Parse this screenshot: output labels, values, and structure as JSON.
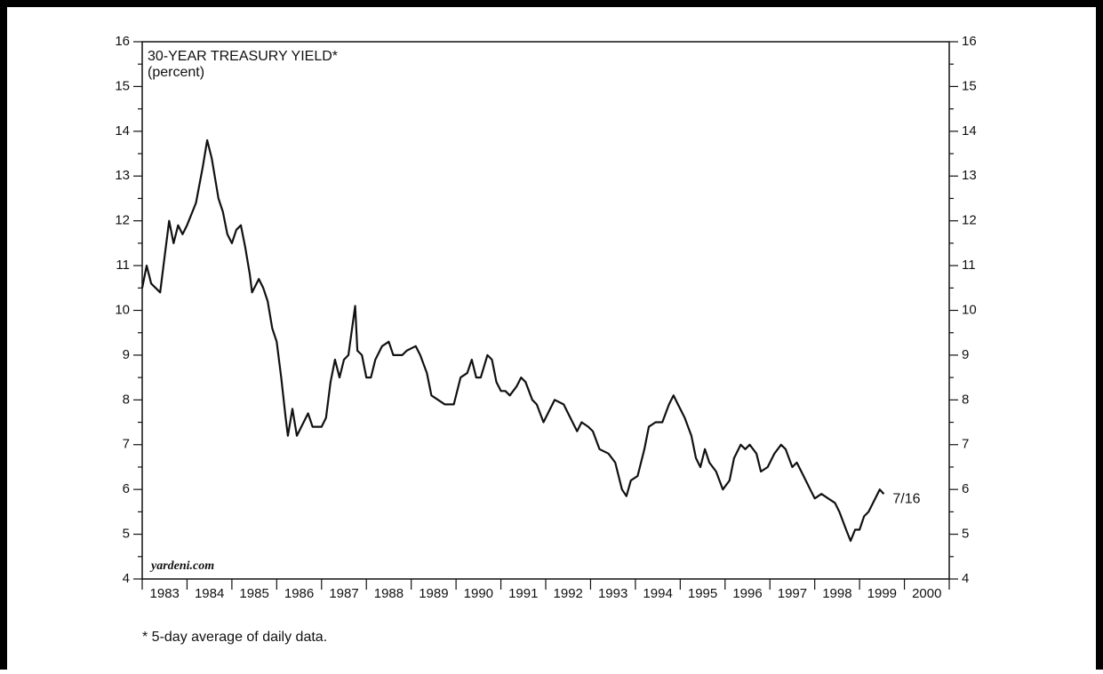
{
  "chart_data": {
    "type": "line",
    "title": "30-YEAR TREASURY YIELD*",
    "subtitle": "(percent)",
    "annotation": "7/16",
    "source": "yardeni.com",
    "footnote": "* 5-day average of daily data.",
    "categories": [
      "1983",
      "1984",
      "1985",
      "1986",
      "1987",
      "1988",
      "1989",
      "1990",
      "1991",
      "1992",
      "1993",
      "1994",
      "1995",
      "1996",
      "1997",
      "1998",
      "1999",
      "2000"
    ],
    "xlim": [
      1983,
      2001
    ],
    "xticks": [
      1983,
      1984,
      1985,
      1986,
      1987,
      1988,
      1989,
      1990,
      1991,
      1992,
      1993,
      1994,
      1995,
      1996,
      1997,
      1998,
      1999,
      2000,
      2001
    ],
    "ylim": [
      4,
      16
    ],
    "yticks": [
      4,
      5,
      6,
      7,
      8,
      9,
      10,
      11,
      12,
      13,
      14,
      15,
      16
    ],
    "color": "#111111",
    "x": [
      1983.0,
      1983.1,
      1983.2,
      1983.4,
      1983.5,
      1983.6,
      1983.7,
      1983.8,
      1983.9,
      1984.0,
      1984.2,
      1984.35,
      1984.45,
      1984.55,
      1984.7,
      1984.8,
      1984.9,
      1985.0,
      1985.1,
      1985.2,
      1985.3,
      1985.4,
      1985.45,
      1985.6,
      1985.7,
      1985.8,
      1985.9,
      1986.0,
      1986.1,
      1986.2,
      1986.25,
      1986.35,
      1986.45,
      1986.6,
      1986.7,
      1986.8,
      1986.9,
      1987.0,
      1987.1,
      1987.2,
      1987.3,
      1987.4,
      1987.5,
      1987.6,
      1987.75,
      1987.8,
      1987.9,
      1988.0,
      1988.1,
      1988.2,
      1988.35,
      1988.5,
      1988.6,
      1988.8,
      1988.9,
      1989.1,
      1989.2,
      1989.35,
      1989.45,
      1989.6,
      1989.75,
      1989.95,
      1990.1,
      1990.25,
      1990.35,
      1990.45,
      1990.55,
      1990.7,
      1990.8,
      1990.9,
      1991.0,
      1991.1,
      1991.2,
      1991.35,
      1991.45,
      1991.55,
      1991.7,
      1991.8,
      1991.95,
      1992.1,
      1992.2,
      1992.4,
      1992.55,
      1992.7,
      1992.8,
      1992.95,
      1993.05,
      1993.2,
      1993.4,
      1993.55,
      1993.7,
      1993.8,
      1993.9,
      1994.05,
      1994.2,
      1994.3,
      1994.45,
      1994.6,
      1994.75,
      1994.85,
      1994.95,
      1995.1,
      1995.25,
      1995.35,
      1995.45,
      1995.55,
      1995.65,
      1995.8,
      1995.95,
      1996.1,
      1996.2,
      1996.35,
      1996.45,
      1996.55,
      1996.7,
      1996.8,
      1996.95,
      1997.1,
      1997.25,
      1997.35,
      1997.5,
      1997.6,
      1997.75,
      1997.9,
      1998.0,
      1998.15,
      1998.3,
      1998.45,
      1998.55,
      1998.7,
      1998.8,
      1998.9,
      1999.0,
      1999.1,
      1999.2,
      1999.35,
      1999.45,
      1999.54
    ],
    "values": [
      10.5,
      11.0,
      10.6,
      10.4,
      11.2,
      12.0,
      11.5,
      11.9,
      11.7,
      11.9,
      12.4,
      13.2,
      13.8,
      13.4,
      12.5,
      12.2,
      11.7,
      11.5,
      11.8,
      11.9,
      11.4,
      10.8,
      10.4,
      10.7,
      10.5,
      10.2,
      9.6,
      9.3,
      8.5,
      7.6,
      7.2,
      7.8,
      7.2,
      7.5,
      7.7,
      7.4,
      7.4,
      7.4,
      7.6,
      8.4,
      8.9,
      8.5,
      8.9,
      9.0,
      10.1,
      9.1,
      9.0,
      8.5,
      8.5,
      8.9,
      9.2,
      9.3,
      9.0,
      9.0,
      9.1,
      9.2,
      9.0,
      8.6,
      8.1,
      8.0,
      7.9,
      7.9,
      8.5,
      8.6,
      8.9,
      8.5,
      8.5,
      9.0,
      8.9,
      8.4,
      8.2,
      8.2,
      8.1,
      8.3,
      8.5,
      8.4,
      8.0,
      7.9,
      7.5,
      7.8,
      8.0,
      7.9,
      7.6,
      7.3,
      7.5,
      7.4,
      7.3,
      6.9,
      6.8,
      6.6,
      6.0,
      5.85,
      6.2,
      6.3,
      6.9,
      7.4,
      7.5,
      7.5,
      7.9,
      8.1,
      7.9,
      7.6,
      7.2,
      6.7,
      6.5,
      6.9,
      6.6,
      6.4,
      6.0,
      6.2,
      6.7,
      7.0,
      6.9,
      7.0,
      6.8,
      6.4,
      6.5,
      6.8,
      7.0,
      6.9,
      6.5,
      6.6,
      6.3,
      6.0,
      5.8,
      5.9,
      5.8,
      5.7,
      5.5,
      5.1,
      4.85,
      5.1,
      5.1,
      5.4,
      5.5,
      5.8,
      6.0,
      5.9
    ]
  }
}
